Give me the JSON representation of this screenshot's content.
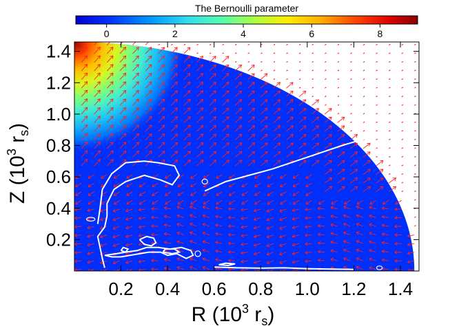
{
  "chart_data": {
    "type": "heatmap",
    "colorbar": {
      "title": "The Bernoulli parameter",
      "range": [
        -0.9,
        9.1
      ],
      "ticks": [
        0,
        2,
        4,
        6,
        8
      ],
      "tick_labels": [
        "0",
        "2",
        "4",
        "6",
        "8"
      ],
      "colormap": "rainbow (blue to dark red)"
    },
    "axes": {
      "xlabel_main": "R (10",
      "xlabel_sup": "3",
      "xlabel_unit": " r",
      "xlabel_sub": "s",
      "xlabel_close": ")",
      "ylabel_main": "Z (10",
      "ylabel_sup": "3",
      "ylabel_unit": " r",
      "ylabel_sub": "s",
      "ylabel_close": ")",
      "xlim": [
        0.0,
        1.48
      ],
      "ylim": [
        0.0,
        1.46
      ],
      "xticks": [
        0.2,
        0.4,
        0.6,
        0.8,
        1.0,
        1.2,
        1.4
      ],
      "xtick_labels": [
        "0.2",
        "0.4",
        "0.6",
        "0.8",
        "1.0",
        "1.2",
        "1.4"
      ],
      "yticks": [
        0.2,
        0.4,
        0.6,
        0.8,
        1.0,
        1.2,
        1.4
      ],
      "ytick_labels": [
        "0.2",
        "0.4",
        "0.6",
        "0.8",
        "1.0",
        "1.2",
        "1.4"
      ]
    },
    "domain": {
      "shape": "quarter-disk",
      "radius": 1.46
    },
    "background_value": 0.0,
    "high_region": {
      "center": [
        0.0,
        1.46
      ],
      "peak_value": 9.0,
      "extent": 0.48,
      "description": "near the polar axis at large Z"
    },
    "contour_level_value": 0.0,
    "contour_color": "#ffffff",
    "contours": [
      [
        [
          0.56,
          0.51
        ],
        [
          0.65,
          0.57
        ],
        [
          0.75,
          0.61
        ],
        [
          0.85,
          0.65
        ],
        [
          0.95,
          0.7
        ],
        [
          1.05,
          0.75
        ],
        [
          1.15,
          0.8
        ],
        [
          1.24,
          0.84
        ],
        [
          1.32,
          0.89
        ]
      ],
      [
        [
          0.13,
          0.02
        ],
        [
          0.12,
          0.08
        ],
        [
          0.11,
          0.15
        ],
        [
          0.1,
          0.22
        ],
        [
          0.13,
          0.28
        ],
        [
          0.14,
          0.35
        ],
        [
          0.14,
          0.43
        ],
        [
          0.17,
          0.52
        ],
        [
          0.22,
          0.57
        ],
        [
          0.3,
          0.61
        ],
        [
          0.37,
          0.58
        ],
        [
          0.42,
          0.55
        ],
        [
          0.45,
          0.61
        ],
        [
          0.43,
          0.67
        ],
        [
          0.36,
          0.69
        ],
        [
          0.3,
          0.7
        ],
        [
          0.22,
          0.69
        ],
        [
          0.16,
          0.62
        ],
        [
          0.12,
          0.52
        ],
        [
          0.11,
          0.4
        ],
        [
          0.1,
          0.3
        ]
      ],
      [
        [
          0.13,
          0.1
        ],
        [
          0.18,
          0.11
        ],
        [
          0.22,
          0.12
        ],
        [
          0.27,
          0.13
        ],
        [
          0.31,
          0.15
        ],
        [
          0.36,
          0.15
        ],
        [
          0.41,
          0.14
        ],
        [
          0.46,
          0.15
        ],
        [
          0.5,
          0.13
        ],
        [
          0.51,
          0.1
        ],
        [
          0.48,
          0.08
        ],
        [
          0.44,
          0.11
        ],
        [
          0.4,
          0.1
        ],
        [
          0.37,
          0.12
        ],
        [
          0.32,
          0.12
        ],
        [
          0.28,
          0.11
        ],
        [
          0.24,
          0.1
        ],
        [
          0.2,
          0.09
        ],
        [
          0.16,
          0.09
        ],
        [
          0.13,
          0.1
        ]
      ],
      [
        [
          0.28,
          0.2
        ],
        [
          0.3,
          0.17
        ],
        [
          0.33,
          0.16
        ],
        [
          0.35,
          0.18
        ],
        [
          0.34,
          0.21
        ],
        [
          0.31,
          0.22
        ],
        [
          0.28,
          0.2
        ]
      ],
      [
        [
          0.38,
          0.12
        ],
        [
          0.42,
          0.11
        ],
        [
          0.45,
          0.12
        ],
        [
          0.43,
          0.14
        ],
        [
          0.39,
          0.14
        ],
        [
          0.38,
          0.12
        ]
      ],
      [
        [
          0.2,
          0.13
        ],
        [
          0.22,
          0.12
        ],
        [
          0.23,
          0.14
        ],
        [
          0.21,
          0.15
        ],
        [
          0.2,
          0.13
        ]
      ],
      [
        [
          0.6,
          0.025
        ],
        [
          0.7,
          0.02
        ],
        [
          0.8,
          0.018
        ],
        [
          0.9,
          0.02
        ],
        [
          1.0,
          0.015
        ],
        [
          1.1,
          0.012
        ],
        [
          1.2,
          0.01
        ]
      ],
      [
        [
          0.62,
          0.04
        ],
        [
          0.66,
          0.035
        ],
        [
          0.69,
          0.045
        ],
        [
          0.65,
          0.05
        ],
        [
          0.62,
          0.04
        ]
      ]
    ],
    "small_loops": [
      {
        "center": [
          0.07,
          0.33
        ],
        "rx": 0.018,
        "ry": 0.012
      },
      {
        "center": [
          0.56,
          0.57
        ],
        "rx": 0.012,
        "ry": 0.016
      },
      {
        "center": [
          0.53,
          0.11
        ],
        "rx": 0.012,
        "ry": 0.018
      },
      {
        "center": [
          1.31,
          0.02
        ],
        "rx": 0.012,
        "ry": 0.012
      }
    ],
    "vector_field": {
      "arrow_color": "#ff2020",
      "description": "velocity vectors: outflow toward upper-right above ~Z=0.6, inflow toward lower-left near the equatorial plane"
    }
  }
}
